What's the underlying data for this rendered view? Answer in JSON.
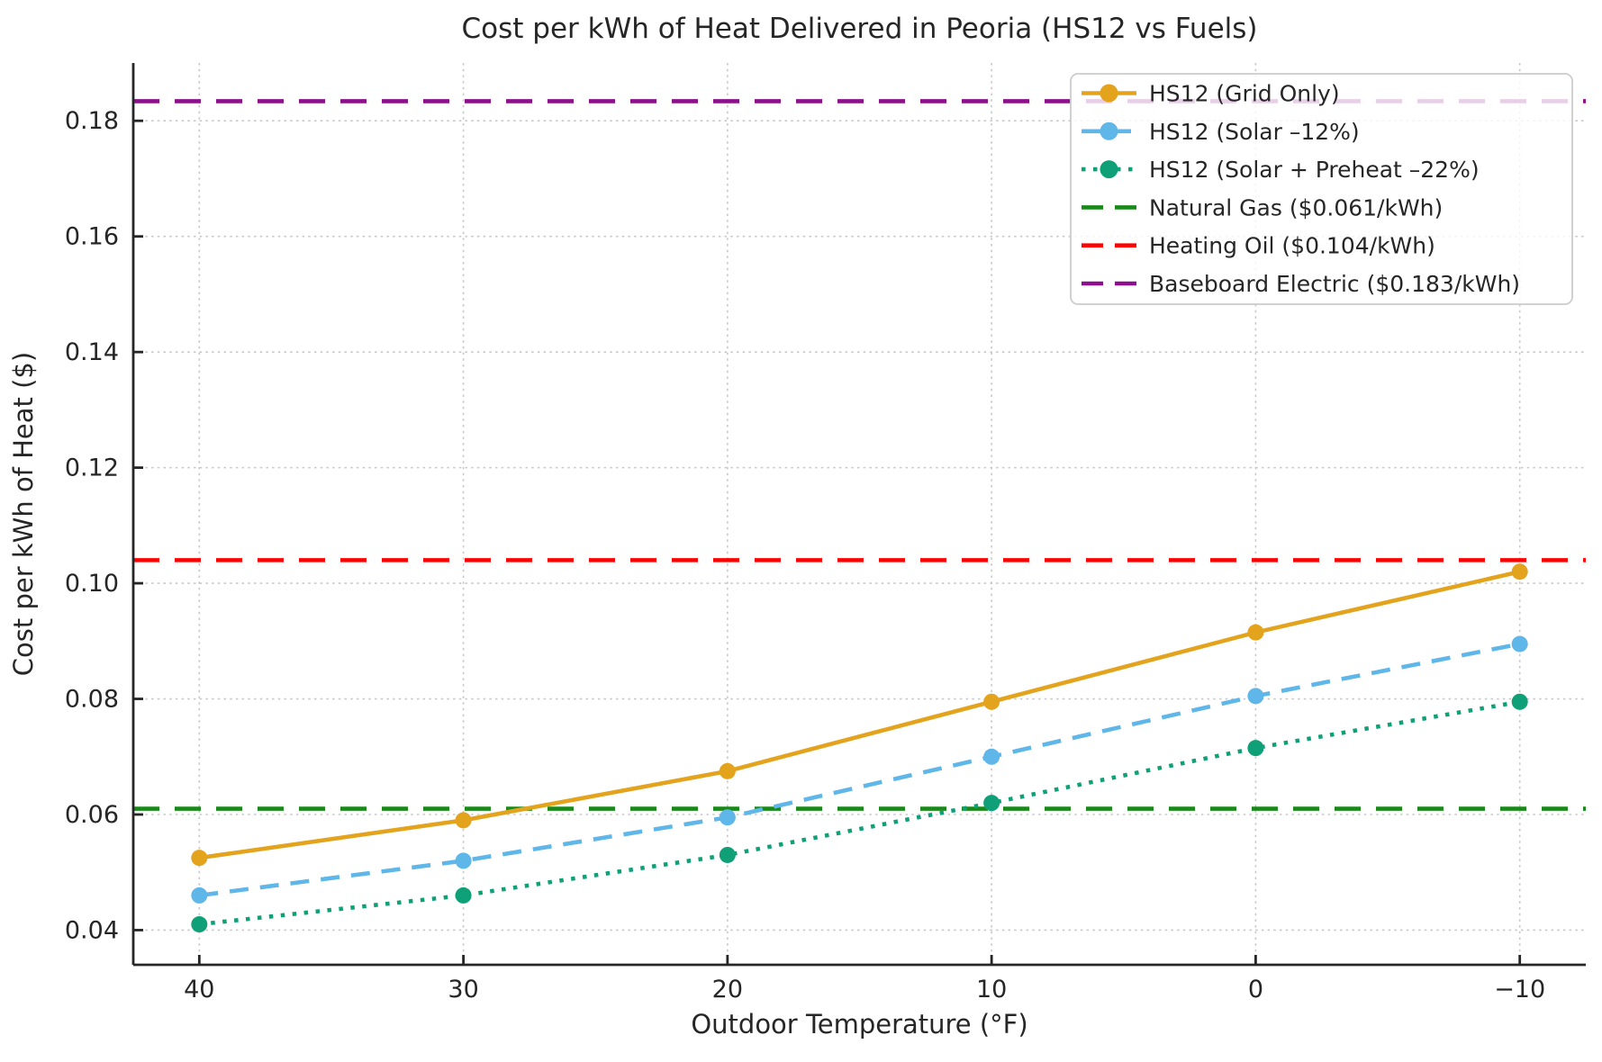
{
  "chart_data": {
    "type": "line",
    "title": "Cost per kWh of Heat Delivered in Peoria (HS12 vs Fuels)",
    "xlabel": "Outdoor Temperature (°F)",
    "ylabel": "Cost per kWh of Heat ($)",
    "x": [
      40,
      30,
      20,
      10,
      0,
      -10
    ],
    "x_tick_labels": [
      "40",
      "30",
      "20",
      "10",
      "0",
      "−10"
    ],
    "y_ticks": [
      0.04,
      0.06,
      0.08,
      0.1,
      0.12,
      0.14,
      0.16,
      0.18
    ],
    "y_tick_labels": [
      "0.04",
      "0.06",
      "0.08",
      "0.10",
      "0.12",
      "0.14",
      "0.16",
      "0.18"
    ],
    "xlim": [
      42.5,
      -12.5
    ],
    "ylim": [
      0.034,
      0.19
    ],
    "grid": true,
    "legend_position": "upper right",
    "series": [
      {
        "name": "HS12 (Grid Only)",
        "color": "#E4A31C",
        "style": "solid",
        "marker": "circle",
        "values": [
          0.0525,
          0.059,
          0.0675,
          0.0795,
          0.0915,
          0.102
        ]
      },
      {
        "name": "HS12 (Solar –12%)",
        "color": "#5FB6E8",
        "style": "dashed",
        "marker": "circle",
        "values": [
          0.046,
          0.052,
          0.0595,
          0.07,
          0.0805,
          0.0895
        ]
      },
      {
        "name": "HS12 (Solar + Preheat –22%)",
        "color": "#0FA078",
        "style": "dotted",
        "marker": "circle",
        "values": [
          0.041,
          0.046,
          0.053,
          0.062,
          0.0715,
          0.0795
        ]
      }
    ],
    "reference_lines": [
      {
        "name": "Natural Gas ($0.061/kWh)",
        "color": "#178A17",
        "style": "dashed",
        "value": 0.061
      },
      {
        "name": "Heating Oil ($0.104/kWh)",
        "color": "#FF0000",
        "style": "dashed",
        "value": 0.104
      },
      {
        "name": "Baseboard Electric ($0.183/kWh)",
        "color": "#8C108C",
        "style": "dashed",
        "value": 0.1834
      }
    ],
    "colors": {
      "grid_line": "#C8C8C8",
      "axis": "#262626",
      "legend_border": "#CCCCCC",
      "background": "#FFFFFF"
    }
  }
}
